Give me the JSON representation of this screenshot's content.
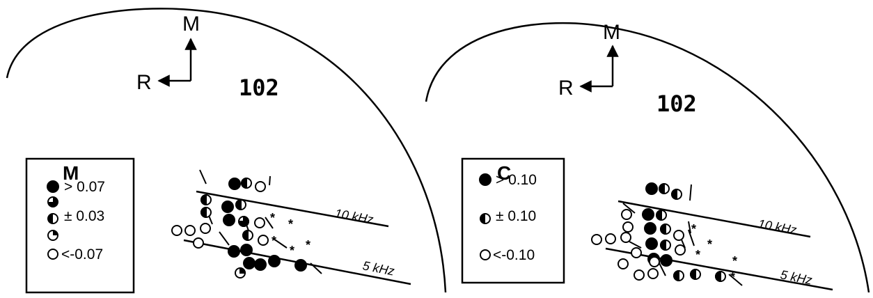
{
  "panels": [
    {
      "id": "left",
      "axis_up_label": "M",
      "axis_left_label": "R",
      "number_label": "102",
      "legend": {
        "title": "M",
        "rows": [
          {
            "symbol": "filled",
            "text": "> 0.07"
          },
          {
            "symbol": "three-quarter",
            "text": ""
          },
          {
            "symbol": "half",
            "text": "± 0.03"
          },
          {
            "symbol": "quarter",
            "text": ""
          },
          {
            "symbol": "open",
            "text": "<-0.07"
          }
        ]
      },
      "isofrequency_labels": [
        "10 kHz",
        "5 kHz"
      ]
    },
    {
      "id": "right",
      "axis_up_label": "M",
      "axis_left_label": "R",
      "number_label": "102",
      "legend": {
        "title": "C",
        "rows": [
          {
            "symbol": "filled",
            "text": "> 0.10"
          },
          {
            "symbol": "half",
            "text": "± 0.10"
          },
          {
            "symbol": "open",
            "text": "<-0.10"
          }
        ]
      },
      "isofrequency_labels": [
        "10 kHz",
        "5 kHz"
      ]
    }
  ]
}
